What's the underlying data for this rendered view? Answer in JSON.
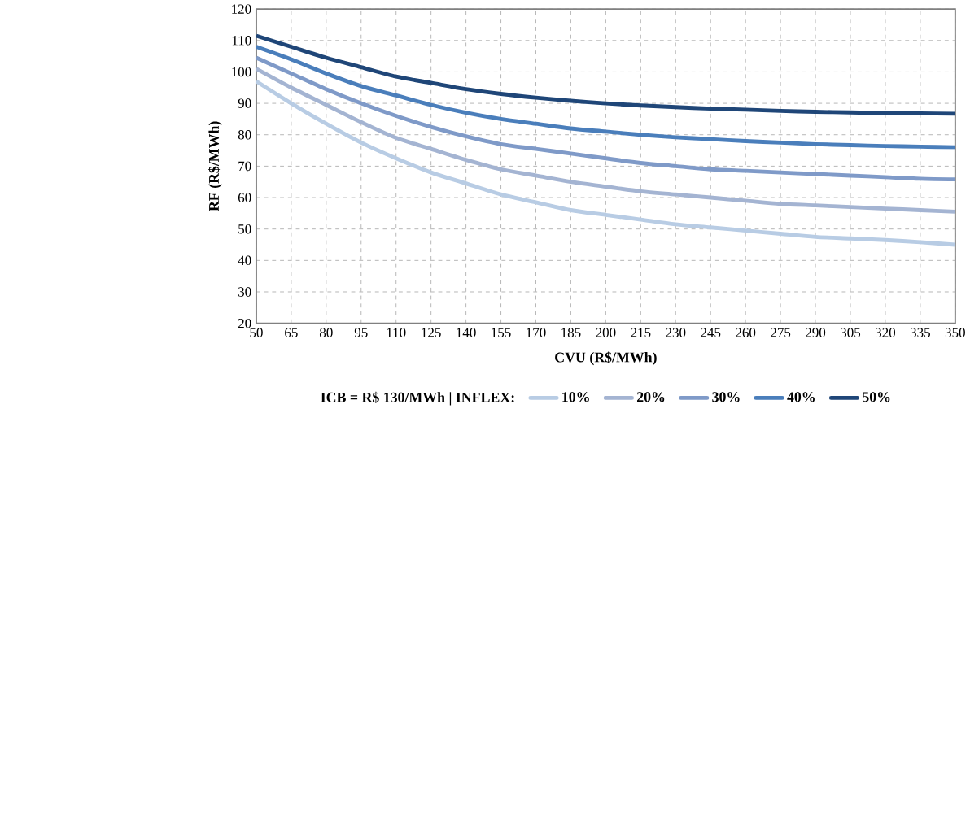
{
  "chart_data": {
    "type": "line",
    "xlabel": "CVU (R$/MWh)",
    "ylabel": "RF (R$/MWh)",
    "legend_title": "ICB = R$ 130/MWh | INFLEX:",
    "x": [
      50,
      65,
      80,
      95,
      110,
      125,
      140,
      155,
      170,
      185,
      200,
      215,
      230,
      245,
      260,
      275,
      290,
      305,
      320,
      335,
      350
    ],
    "series": [
      {
        "name": "10%",
        "color": "#b8cce4",
        "values": [
          97,
          90,
          83.5,
          77.5,
          72.5,
          68,
          64.5,
          61,
          58.5,
          56,
          54.5,
          53,
          51.5,
          50.5,
          49.5,
          48.5,
          47.5,
          47,
          46.5,
          45.8,
          45
        ]
      },
      {
        "name": "20%",
        "color": "#a4b4d2",
        "values": [
          101,
          95,
          89.5,
          84,
          79,
          75.5,
          72,
          69,
          67,
          65,
          63.5,
          62,
          61,
          60,
          59,
          58,
          57.5,
          57,
          56.5,
          56,
          55.5
        ]
      },
      {
        "name": "30%",
        "color": "#7f9ac8",
        "values": [
          104.5,
          99.5,
          94.5,
          90,
          86,
          82.5,
          79.5,
          77,
          75.5,
          74,
          72.5,
          71,
          70,
          69,
          68.5,
          68,
          67.5,
          67,
          66.5,
          66,
          65.8
        ]
      },
      {
        "name": "40%",
        "color": "#4a7ebb",
        "values": [
          108,
          104,
          99.5,
          95.5,
          92.5,
          89.5,
          87,
          85,
          83.5,
          82,
          81,
          80,
          79.2,
          78.6,
          78,
          77.5,
          77,
          76.7,
          76.4,
          76.2,
          76
        ]
      },
      {
        "name": "50%",
        "color": "#1f4678",
        "values": [
          111.5,
          108,
          104.5,
          101.5,
          98.5,
          96.5,
          94.5,
          93,
          91.8,
          90.8,
          90,
          89.3,
          88.8,
          88.3,
          88,
          87.6,
          87.3,
          87.1,
          86.9,
          86.8,
          86.7
        ]
      }
    ],
    "xlim": [
      50,
      350
    ],
    "ylim": [
      20,
      120
    ],
    "xticks": [
      50,
      65,
      80,
      95,
      110,
      125,
      140,
      155,
      170,
      185,
      200,
      215,
      230,
      245,
      260,
      275,
      290,
      305,
      320,
      335,
      350
    ],
    "yticks": [
      20,
      30,
      40,
      50,
      60,
      70,
      80,
      90,
      100,
      110,
      120
    ],
    "grid": true,
    "legend": "bottom",
    "marker": "none",
    "line_style": "solid"
  }
}
